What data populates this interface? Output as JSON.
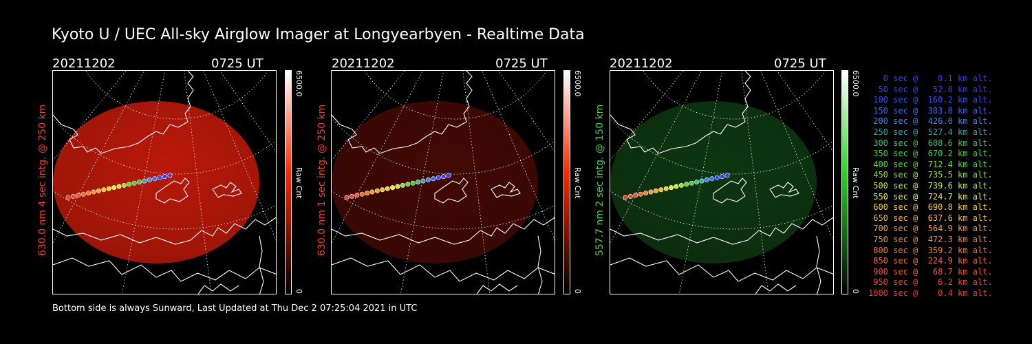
{
  "title": "Kyoto U / UEC All-sky Airglow Imager at Longyearbyen - Realtime Data",
  "footer": "Bottom side is always Sunward, Last Updated at Thu Dec  2 07:25:04 2021 in UTC",
  "panels": [
    {
      "date": "20211202",
      "time": "0725 UT",
      "ylabel": "630.0 nm 4 sec intg. @ 250 km",
      "label_color": "#ff3b1f",
      "cbar_max": "6500.0",
      "cbar_min": "0",
      "cbar_label": "Raw Cnt",
      "image_color": "#c21a0a",
      "image_opacity": 0.95,
      "cbar_color": "#ff2a00"
    },
    {
      "date": "20211202",
      "time": "0725 UT",
      "ylabel": "630.0 nm 1 sec intg. @ 250 km",
      "label_color": "#ff3b1f",
      "cbar_max": "6500.0",
      "cbar_min": "0",
      "cbar_label": "Raw Cnt",
      "image_color": "#4a0a05",
      "image_opacity": 0.9,
      "cbar_color": "#ff2a00"
    },
    {
      "date": "20211202",
      "time": "0725 UT",
      "ylabel": "557.7 nm 2 sec intg. @ 150 km",
      "label_color": "#3dd63d",
      "cbar_max": "6500.0",
      "cbar_min": "0",
      "cbar_label": "Raw Cnt",
      "image_color": "#0f3c12",
      "image_opacity": 0.9,
      "cbar_color": "#2bd62b"
    }
  ],
  "legend": [
    {
      "text": "   0 sec @    0.1 km alt.",
      "color": "#3a3aff"
    },
    {
      "text": "  50 sec @   52.0 km alt.",
      "color": "#3a3aff"
    },
    {
      "text": " 100 sec @  160.2 km alt.",
      "color": "#2c52ff"
    },
    {
      "text": " 150 sec @  303.8 km alt.",
      "color": "#2a6cff"
    },
    {
      "text": " 200 sec @  426.0 km alt.",
      "color": "#2a8cff"
    },
    {
      "text": " 250 sec @  527.4 km alt.",
      "color": "#2aa8b8"
    },
    {
      "text": " 300 sec @  608.6 km alt.",
      "color": "#2ec870"
    },
    {
      "text": " 350 sec @  670.2 km alt.",
      "color": "#3ed63a"
    },
    {
      "text": " 400 sec @  712.4 km alt.",
      "color": "#5de02a"
    },
    {
      "text": " 450 sec @  735.5 km alt.",
      "color": "#8ee62a"
    },
    {
      "text": " 500 sec @  739.6 km alt.",
      "color": "#c4ee2a"
    },
    {
      "text": " 550 sec @  724.7 km alt.",
      "color": "#eeee2a"
    },
    {
      "text": " 600 sec @  690.8 km alt.",
      "color": "#f5d42a"
    },
    {
      "text": " 650 sec @  637.6 km alt.",
      "color": "#f5bd2a"
    },
    {
      "text": " 700 sec @  564.9 km alt.",
      "color": "#f5a62a"
    },
    {
      "text": " 750 sec @  472.3 km alt.",
      "color": "#f5922a"
    },
    {
      "text": " 800 sec @  359.2 km alt.",
      "color": "#f57c2a"
    },
    {
      "text": " 850 sec @  224.9 km alt.",
      "color": "#f5682a"
    },
    {
      "text": " 900 sec @   68.7 km alt.",
      "color": "#f5542a"
    },
    {
      "text": " 950 sec @    6.2 km alt.",
      "color": "#f5442a"
    },
    {
      "text": "1000 sec @    0.4 km alt.",
      "color": "#f53a2a"
    }
  ]
}
